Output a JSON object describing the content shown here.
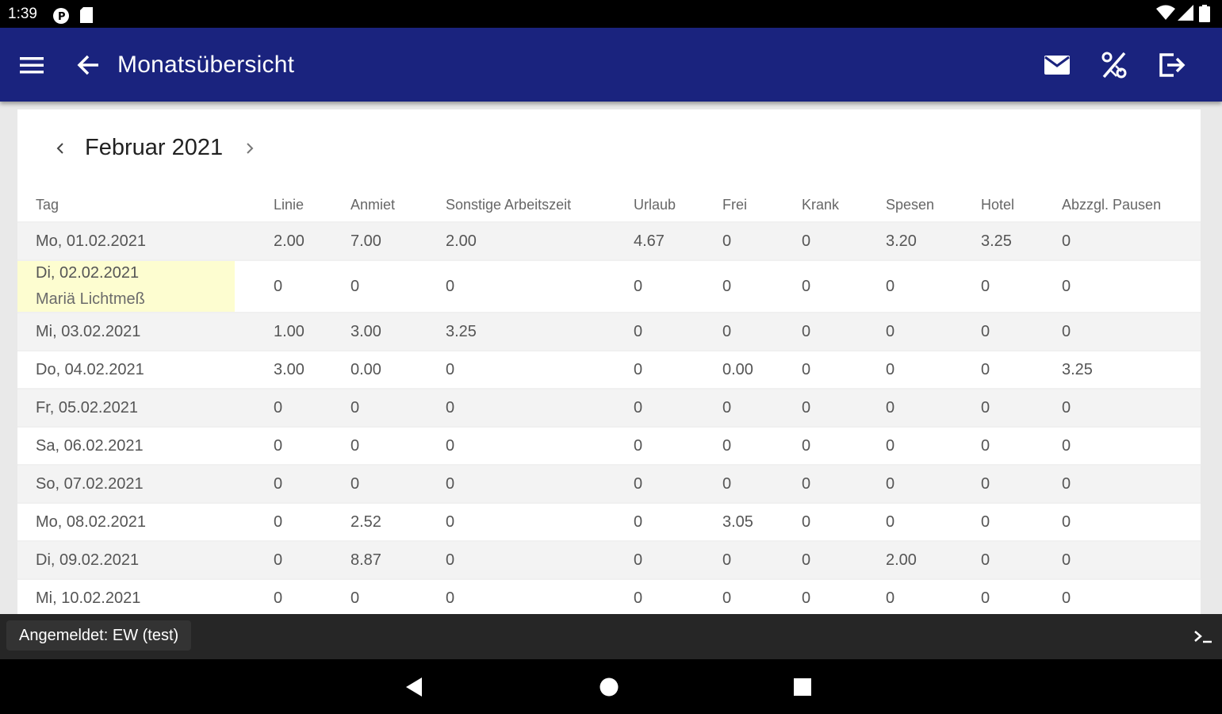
{
  "status_bar": {
    "time": "1:39"
  },
  "app_bar": {
    "title": "Monatsübersicht"
  },
  "month_nav": {
    "label": "Februar 2021"
  },
  "table": {
    "columns": [
      "Tag",
      "Linie",
      "Anmiet",
      "Sonstige Arbeitszeit",
      "Urlaub",
      "Frei",
      "Krank",
      "Spesen",
      "Hotel",
      "Abzzgl. Pausen"
    ],
    "rows": [
      {
        "day": "Mo, 01.02.2021",
        "values": [
          "2.00",
          "7.00",
          "2.00",
          "4.67",
          "0",
          "0",
          "3.20",
          "3.25",
          "0"
        ]
      },
      {
        "day": "Di, 02.02.2021",
        "holiday": "Mariä Lichtmeß",
        "values": [
          "0",
          "0",
          "0",
          "0",
          "0",
          "0",
          "0",
          "0",
          "0"
        ]
      },
      {
        "day": "Mi, 03.02.2021",
        "values": [
          "1.00",
          "3.00",
          "3.25",
          "0",
          "0",
          "0",
          "0",
          "0",
          "0"
        ]
      },
      {
        "day": "Do, 04.02.2021",
        "values": [
          "3.00",
          "0.00",
          "0",
          "0",
          "0.00",
          "0",
          "0",
          "0",
          "3.25"
        ]
      },
      {
        "day": "Fr, 05.02.2021",
        "values": [
          "0",
          "0",
          "0",
          "0",
          "0",
          "0",
          "0",
          "0",
          "0"
        ]
      },
      {
        "day": "Sa, 06.02.2021",
        "values": [
          "0",
          "0",
          "0",
          "0",
          "0",
          "0",
          "0",
          "0",
          "0"
        ]
      },
      {
        "day": "So, 07.02.2021",
        "values": [
          "0",
          "0",
          "0",
          "0",
          "0",
          "0",
          "0",
          "0",
          "0"
        ]
      },
      {
        "day": "Mo, 08.02.2021",
        "values": [
          "0",
          "2.52",
          "0",
          "0",
          "3.05",
          "0",
          "0",
          "0",
          "0"
        ]
      },
      {
        "day": "Di, 09.02.2021",
        "values": [
          "0",
          "8.87",
          "0",
          "0",
          "0",
          "0",
          "2.00",
          "0",
          "0"
        ]
      },
      {
        "day": "Mi, 10.02.2021",
        "values": [
          "0",
          "0",
          "0",
          "0",
          "0",
          "0",
          "0",
          "0",
          "0"
        ]
      }
    ]
  },
  "bottom_bar": {
    "login_text": "Angemeldet: EW (test)"
  },
  "colors": {
    "app_bar": "#1a237e",
    "holiday_highlight": "#fdfdd0",
    "bottom_bar": "#262626"
  },
  "icons": [
    "menu-icon",
    "back-arrow-icon",
    "mail-icon",
    "percent-icon",
    "logout-icon",
    "terminal-icon",
    "nav-back-icon",
    "nav-home-icon",
    "nav-recents-icon"
  ]
}
